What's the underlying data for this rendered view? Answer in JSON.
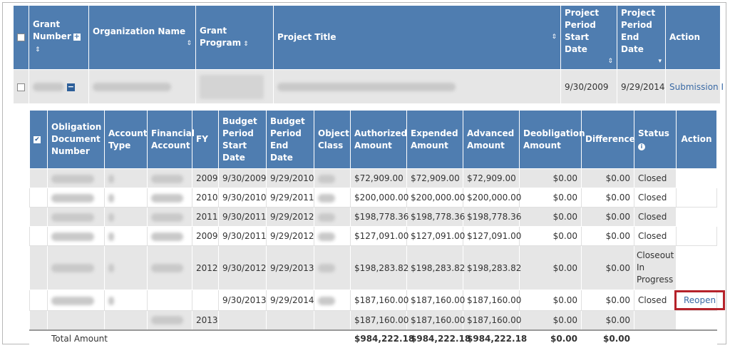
{
  "grant_table": {
    "headers": {
      "grant_number": "Grant Number",
      "organization_name": "Organization Name",
      "grant_program": "Grant Program",
      "project_title": "Project Title",
      "period_start": "Project Period Start Date",
      "period_end": "Project Period End Date",
      "action": "Action"
    },
    "row": {
      "period_start": "9/30/2009",
      "period_end": "9/29/2014",
      "action_link": "Submission I"
    }
  },
  "obligation_table": {
    "headers": {
      "obligation_doc": "Obligation Document Number",
      "account_type": "Account Type",
      "financial_account": "Financial Account",
      "fy": "FY",
      "budget_start": "Budget Period Start Date",
      "budget_end": "Budget Period End Date",
      "object_class": "Object Class",
      "authorized": "Authorized Amount",
      "expended": "Expended Amount",
      "advanced": "Advanced Amount",
      "deobligation": "Deobligation Amount",
      "difference": "Difference",
      "status": "Status",
      "action": "Action"
    },
    "rows": [
      {
        "fy": "2009",
        "start": "9/30/2009",
        "end": "9/29/2010",
        "authorized": "$72,909.00",
        "expended": "$72,909.00",
        "advanced": "$72,909.00",
        "deob": "$0.00",
        "diff": "$0.00",
        "status": "Closed"
      },
      {
        "fy": "2010",
        "start": "9/30/2010",
        "end": "9/29/2011",
        "authorized": "$200,000.00",
        "expended": "$200,000.00",
        "advanced": "$200,000.00",
        "deob": "$0.00",
        "diff": "$0.00",
        "status": "Closed"
      },
      {
        "fy": "2011",
        "start": "9/30/2011",
        "end": "9/29/2012",
        "authorized": "$198,778.36",
        "expended": "$198,778.36",
        "advanced": "$198,778.36",
        "deob": "$0.00",
        "diff": "$0.00",
        "status": "Closed"
      },
      {
        "fy": "2009",
        "start": "9/30/2011",
        "end": "9/29/2012",
        "authorized": "$127,091.00",
        "expended": "$127,091.00",
        "advanced": "$127,091.00",
        "deob": "$0.00",
        "diff": "$0.00",
        "status": "Closed"
      },
      {
        "fy": "2012",
        "start": "9/30/2012",
        "end": "9/29/2013",
        "authorized": "$198,283.82",
        "expended": "$198,283.82",
        "advanced": "$198,283.82",
        "deob": "$0.00",
        "diff": "$0.00",
        "status": "Closeout In Progress"
      },
      {
        "fy": "",
        "start": "9/30/2013",
        "end": "9/29/2014",
        "authorized": "$187,160.00",
        "expended": "$187,160.00",
        "advanced": "$187,160.00",
        "deob": "$0.00",
        "diff": "$0.00",
        "status": "Closed",
        "action": "Reopen"
      },
      {
        "fy": "2013",
        "start": "",
        "end": "",
        "authorized": "$187,160.00",
        "expended": "$187,160.00",
        "advanced": "$187,160.00",
        "deob": "$0.00",
        "diff": "$0.00",
        "status": ""
      }
    ],
    "total": {
      "label": "Total Amount",
      "authorized": "$984,222.18",
      "expended": "$984,222.18",
      "advanced": "$984,222.18",
      "deob": "$0.00",
      "diff": "$0.00"
    }
  },
  "icons": {
    "sort": "sort-icon",
    "expand": "expand-icon",
    "collapse": "collapse-icon",
    "info": "info-icon",
    "checkbox": "checkbox-icon"
  },
  "colors": {
    "header_bg": "#4f7db0",
    "row_gray": "#e6e6e6",
    "link": "#3a6aa5",
    "highlight": "#b5222a"
  }
}
